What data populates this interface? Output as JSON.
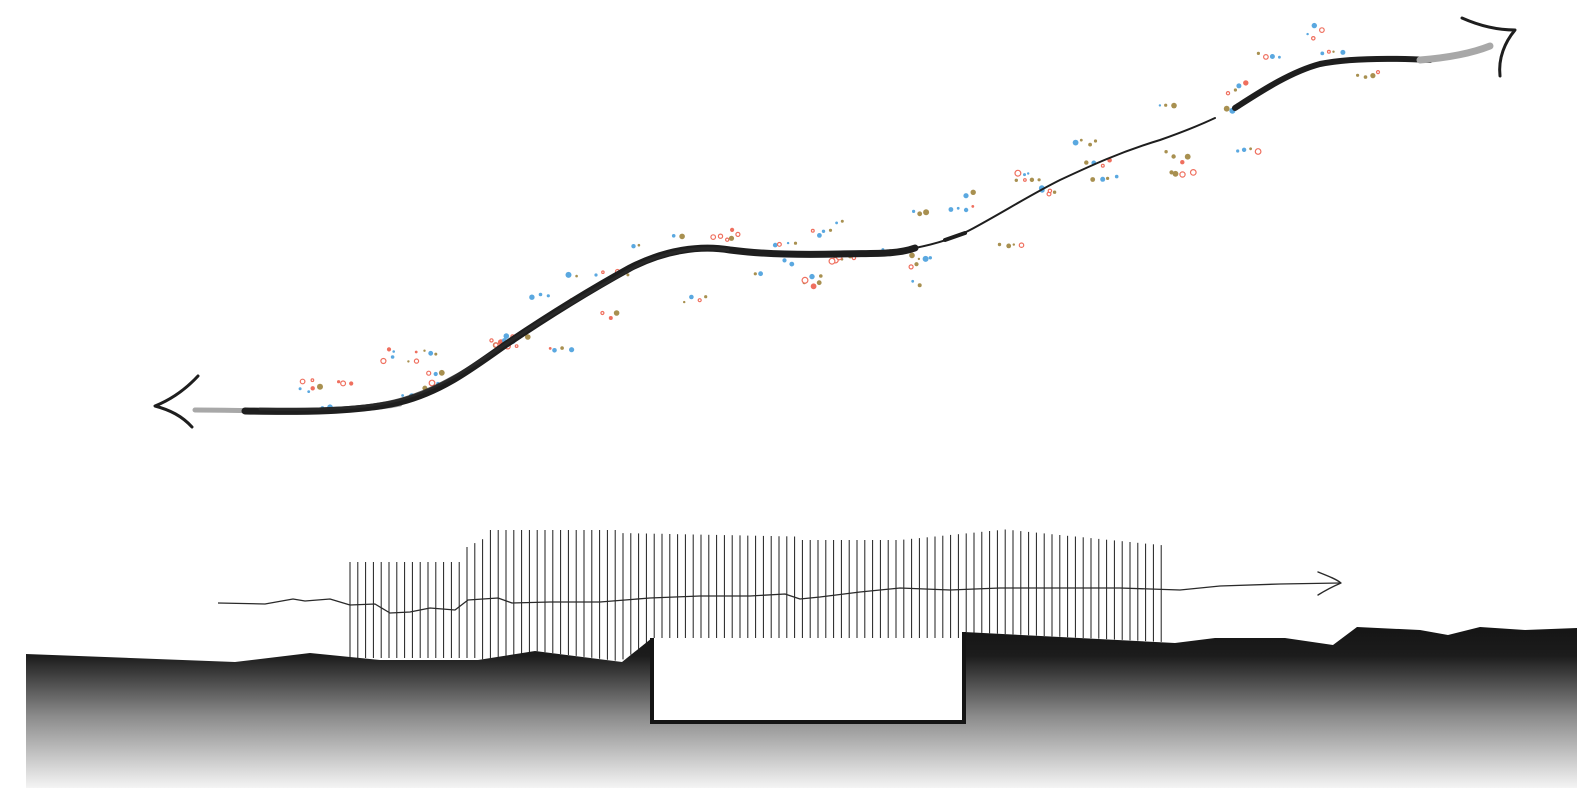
{
  "diagram": {
    "kind": "site section with elevated walkway path and sketch plan of trail",
    "colors": {
      "background": "#ffffff",
      "ink": "#1e1e1e",
      "ground_top": "#151515",
      "ground_fade": "#f2f2f2",
      "dot_blue": "#5aa8e0",
      "dot_pink": "#ef6f5e",
      "dot_olive": "#a89050",
      "grey_stroke": "#a8a8a8"
    },
    "icons": {
      "start_arrow": "left-arrowhead-icon",
      "end_arrow": "right-arrowhead-icon",
      "section_arrow": "right-arrow-icon"
    },
    "legend": []
  }
}
